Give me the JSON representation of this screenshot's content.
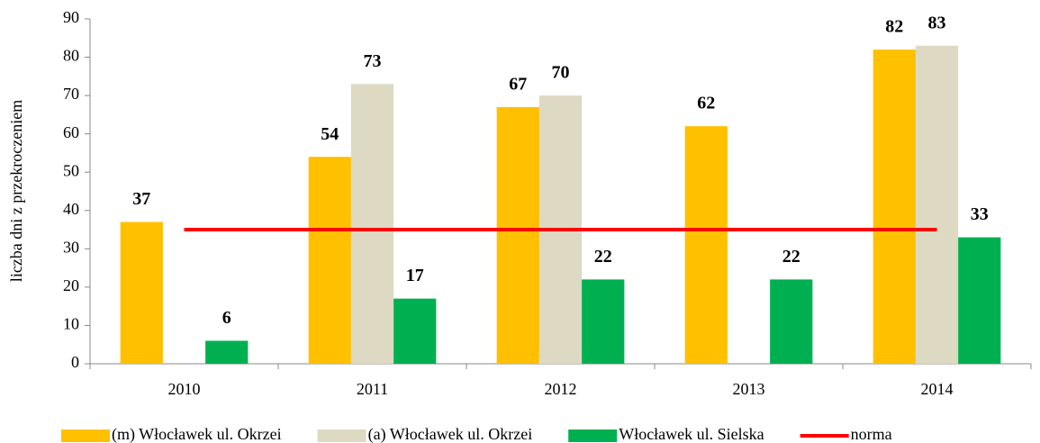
{
  "chart_data": {
    "type": "bar",
    "y_label": "liczba dni z przekroczeniem",
    "categories": [
      "2010",
      "2011",
      "2012",
      "2013",
      "2014"
    ],
    "series": [
      {
        "name": "(m) Włocławek ul. Okrzei",
        "color": "#ffc000",
        "values": [
          37,
          54,
          67,
          62,
          82
        ]
      },
      {
        "name": "(a) Włocławek ul. Okrzei",
        "color": "#ddd9c3",
        "values": [
          null,
          73,
          70,
          null,
          83
        ]
      },
      {
        "name": "Włocławek ul. Sielska",
        "color": "#00b050",
        "values": [
          6,
          17,
          22,
          22,
          33
        ]
      },
      {
        "name": "norma",
        "type": "line",
        "color": "#ff0000",
        "values": [
          35,
          35,
          35,
          35,
          35
        ]
      }
    ],
    "ylim": [
      0,
      90
    ],
    "yticks": [
      0,
      10,
      20,
      30,
      40,
      50,
      60,
      70,
      80,
      90
    ],
    "grid": false,
    "legend": "bottom"
  }
}
